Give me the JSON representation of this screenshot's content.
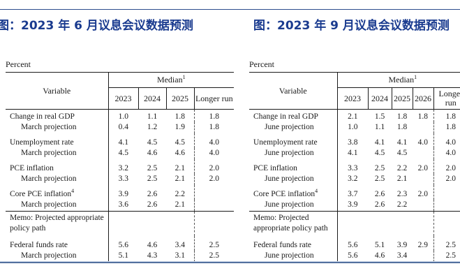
{
  "page": {
    "left_chart_title": "图：2023 年 6 月议息会议数据预测",
    "right_chart_title": "图：2023 年 9 月议息会议数据预测",
    "title_color": "#1a3b8f",
    "rule_color": "#2e4e8e"
  },
  "left_table": {
    "unit_label": "Percent",
    "header": {
      "variable": "Variable",
      "median": "Median",
      "median_sup": "1",
      "years": [
        "2023",
        "2024",
        "2025"
      ],
      "longer_run": "Longer run"
    },
    "rows": [
      {
        "type": "main",
        "label": "Change in real GDP",
        "sup": "",
        "values": [
          "1.0",
          "1.1",
          "1.8"
        ],
        "longer_run": "1.8"
      },
      {
        "type": "sub",
        "label": "March projection",
        "sup": "",
        "values": [
          "0.4",
          "1.2",
          "1.9"
        ],
        "longer_run": "1.8"
      },
      {
        "type": "main",
        "label": "Unemployment rate",
        "sup": "",
        "values": [
          "4.1",
          "4.5",
          "4.5"
        ],
        "longer_run": "4.0"
      },
      {
        "type": "sub",
        "label": "March projection",
        "sup": "",
        "values": [
          "4.5",
          "4.6",
          "4.6"
        ],
        "longer_run": "4.0"
      },
      {
        "type": "main",
        "label": "PCE inflation",
        "sup": "",
        "values": [
          "3.2",
          "2.5",
          "2.1"
        ],
        "longer_run": "2.0"
      },
      {
        "type": "sub",
        "label": "March projection",
        "sup": "",
        "values": [
          "3.3",
          "2.5",
          "2.1"
        ],
        "longer_run": "2.0"
      },
      {
        "type": "main",
        "label": "Core PCE inflation",
        "sup": "4",
        "values": [
          "3.9",
          "2.6",
          "2.2"
        ],
        "longer_run": ""
      },
      {
        "type": "sub",
        "label": "March projection",
        "sup": "",
        "values": [
          "3.6",
          "2.6",
          "2.1"
        ],
        "longer_run": ""
      },
      {
        "type": "memo",
        "label": "Memo: Projected appropriate policy path",
        "sup": "",
        "values": [
          "",
          "",
          ""
        ],
        "longer_run": ""
      },
      {
        "type": "main",
        "label": "Federal funds rate",
        "sup": "",
        "values": [
          "5.6",
          "4.6",
          "3.4"
        ],
        "longer_run": "2.5"
      },
      {
        "type": "sub",
        "label": "March projection",
        "sup": "",
        "values": [
          "5.1",
          "4.3",
          "3.1"
        ],
        "longer_run": "2.5"
      }
    ]
  },
  "right_table": {
    "unit_label": "Percent",
    "header": {
      "variable": "Variable",
      "median": "Median",
      "median_sup": "1",
      "years": [
        "2023",
        "2024",
        "2025",
        "2026"
      ],
      "longer_run": "Longer run"
    },
    "rows": [
      {
        "type": "main",
        "label": "Change in real GDP",
        "sup": "",
        "values": [
          "2.1",
          "1.5",
          "1.8",
          "1.8"
        ],
        "longer_run": "1.8"
      },
      {
        "type": "sub",
        "label": "June projection",
        "sup": "",
        "values": [
          "1.0",
          "1.1",
          "1.8",
          ""
        ],
        "longer_run": "1.8"
      },
      {
        "type": "main",
        "label": "Unemployment rate",
        "sup": "",
        "values": [
          "3.8",
          "4.1",
          "4.1",
          "4.0"
        ],
        "longer_run": "4.0"
      },
      {
        "type": "sub",
        "label": "June projection",
        "sup": "",
        "values": [
          "4.1",
          "4.5",
          "4.5",
          ""
        ],
        "longer_run": "4.0"
      },
      {
        "type": "main",
        "label": "PCE inflation",
        "sup": "",
        "values": [
          "3.3",
          "2.5",
          "2.2",
          "2.0"
        ],
        "longer_run": "2.0"
      },
      {
        "type": "sub",
        "label": "June projection",
        "sup": "",
        "values": [
          "3.2",
          "2.5",
          "2.1",
          ""
        ],
        "longer_run": "2.0"
      },
      {
        "type": "main",
        "label": "Core PCE inflation",
        "sup": "4",
        "values": [
          "3.7",
          "2.6",
          "2.3",
          "2.0"
        ],
        "longer_run": ""
      },
      {
        "type": "sub",
        "label": "June projection",
        "sup": "",
        "values": [
          "3.9",
          "2.6",
          "2.2",
          ""
        ],
        "longer_run": ""
      },
      {
        "type": "memo",
        "label": "Memo: Projected appropriate policy path",
        "sup": "",
        "values": [
          "",
          "",
          "",
          ""
        ],
        "longer_run": ""
      },
      {
        "type": "main",
        "label": "Federal funds rate",
        "sup": "",
        "values": [
          "5.6",
          "5.1",
          "3.9",
          "2.9"
        ],
        "longer_run": "2.5"
      },
      {
        "type": "sub",
        "label": "June projection",
        "sup": "",
        "values": [
          "5.6",
          "4.6",
          "3.4",
          ""
        ],
        "longer_run": "2.5"
      }
    ]
  }
}
